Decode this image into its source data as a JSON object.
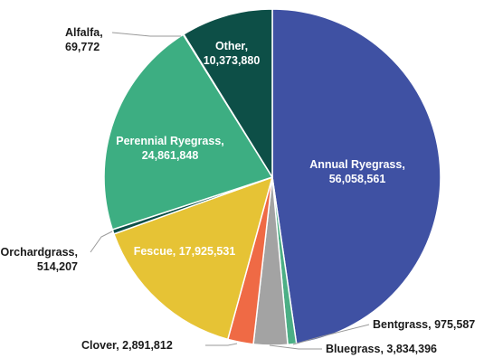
{
  "chart_data": {
    "type": "pie",
    "title": "",
    "start_angle_deg": 0,
    "direction": "clockwise",
    "slices": [
      {
        "label": "Annual Ryegrass",
        "value": 56058561,
        "value_text": "56,058,561",
        "color": "#3f51a3",
        "label_style": "inside-two-line"
      },
      {
        "label": "Bentgrass",
        "value": 975587,
        "value_text": "975,587",
        "color": "#4caf85",
        "label_style": "outside"
      },
      {
        "label": "Bluegrass",
        "value": 3834396,
        "value_text": "3,834,396",
        "color": "#a3a3a3",
        "label_style": "outside"
      },
      {
        "label": "Clover",
        "value": 2891812,
        "value_text": "2,891,812",
        "color": "#ef6a45",
        "label_style": "outside"
      },
      {
        "label": "Fescue",
        "value": 17925531,
        "value_text": "17,925,531",
        "color": "#e6c335",
        "label_style": "inside-one-line"
      },
      {
        "label": "Orchardgrass",
        "value": 514207,
        "value_text": "514,207",
        "color": "#0d4f47",
        "label_style": "outside-two-line"
      },
      {
        "label": "Perennial Ryegrass",
        "value": 24861848,
        "value_text": "24,861,848",
        "color": "#3dae82",
        "label_style": "inside-two-line"
      },
      {
        "label": "Alfalfa",
        "value": 69772,
        "value_text": "69,772",
        "color": "#8fd3b5",
        "label_style": "outside-two-line"
      },
      {
        "label": "Other",
        "value": 10373880,
        "value_text": "10,373,880",
        "color": "#0d4f47",
        "label_style": "inside-two-line"
      }
    ]
  }
}
